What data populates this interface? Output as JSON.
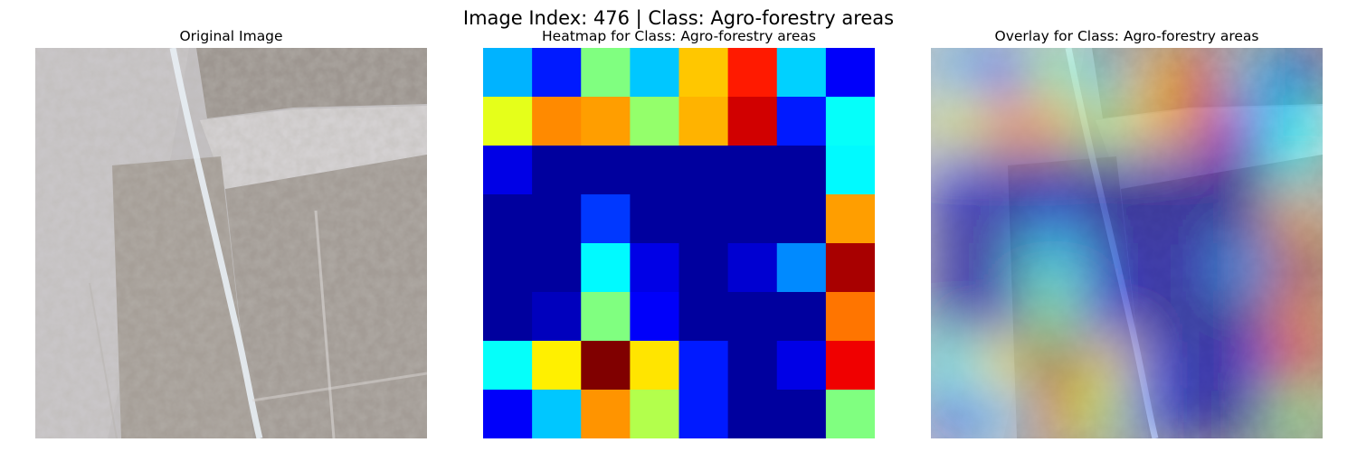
{
  "figure": {
    "suptitle": "Image Index: 476 | Class: Agro-forestry areas"
  },
  "panels": [
    {
      "title": "Original Image"
    },
    {
      "title": "Heatmap for Class: Agro-forestry areas"
    },
    {
      "title": "Overlay for Class: Agro-forestry areas"
    }
  ],
  "heatmap": {
    "colormap": "jet",
    "rows": 8,
    "cols": 8,
    "values": [
      [
        0.3,
        0.15,
        0.5,
        0.32,
        0.68,
        0.85,
        0.33,
        0.12
      ],
      [
        0.6,
        0.74,
        0.72,
        0.52,
        0.7,
        0.92,
        0.15,
        0.38
      ],
      [
        0.1,
        0.03,
        0.03,
        0.03,
        0.03,
        0.03,
        0.03,
        0.37
      ],
      [
        0.03,
        0.03,
        0.18,
        0.03,
        0.03,
        0.03,
        0.03,
        0.72
      ],
      [
        0.03,
        0.03,
        0.37,
        0.1,
        0.03,
        0.08,
        0.26,
        0.96
      ],
      [
        0.03,
        0.06,
        0.5,
        0.12,
        0.03,
        0.03,
        0.03,
        0.76
      ],
      [
        0.38,
        0.64,
        1.0,
        0.65,
        0.15,
        0.03,
        0.1,
        0.89
      ],
      [
        0.12,
        0.32,
        0.73,
        0.55,
        0.15,
        0.03,
        0.03,
        0.5
      ]
    ]
  }
}
